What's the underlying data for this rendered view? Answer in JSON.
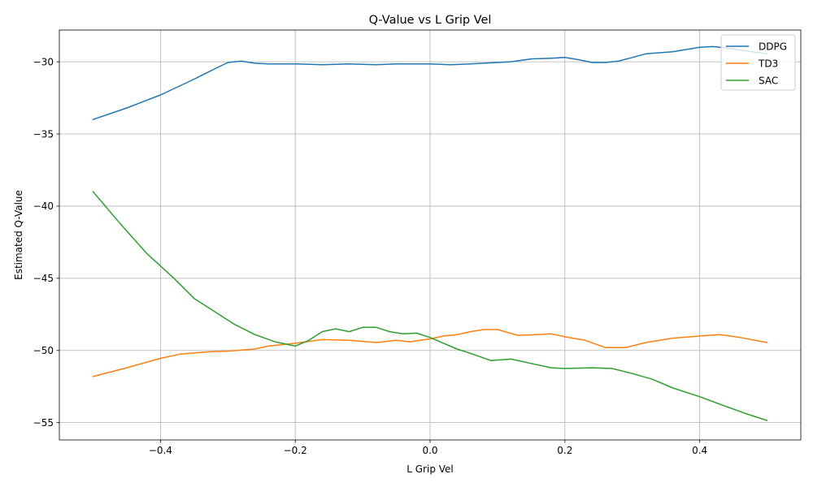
{
  "chart_data": {
    "type": "line",
    "title": "Q-Value vs L Grip Vel",
    "xlabel": "L Grip Vel",
    "ylabel": "Estimated Q-Value",
    "xlim": [
      -0.55,
      0.55
    ],
    "ylim": [
      -56.2,
      -27.8
    ],
    "xticks": [
      -0.4,
      -0.2,
      0.0,
      0.2,
      0.4
    ],
    "xtick_labels": [
      "−0.4",
      "−0.2",
      "0.0",
      "0.2",
      "0.4"
    ],
    "yticks": [
      -55,
      -50,
      -45,
      -40,
      -35,
      -30
    ],
    "ytick_labels": [
      "−55",
      "−50",
      "−45",
      "−40",
      "−35",
      "−30"
    ],
    "grid": true,
    "legend_position": "top-right",
    "series": [
      {
        "name": "DDPG",
        "color": "#1f77b4",
        "points": [
          [
            -0.5,
            -34.0
          ],
          [
            -0.45,
            -33.2
          ],
          [
            -0.4,
            -32.3
          ],
          [
            -0.35,
            -31.2
          ],
          [
            -0.32,
            -30.5
          ],
          [
            -0.3,
            -30.05
          ],
          [
            -0.28,
            -29.95
          ],
          [
            -0.26,
            -30.1
          ],
          [
            -0.24,
            -30.15
          ],
          [
            -0.2,
            -30.15
          ],
          [
            -0.16,
            -30.2
          ],
          [
            -0.12,
            -30.15
          ],
          [
            -0.08,
            -30.2
          ],
          [
            -0.05,
            -30.15
          ],
          [
            -0.02,
            -30.15
          ],
          [
            0.0,
            -30.15
          ],
          [
            0.03,
            -30.2
          ],
          [
            0.06,
            -30.15
          ],
          [
            0.1,
            -30.05
          ],
          [
            0.12,
            -30.0
          ],
          [
            0.15,
            -29.8
          ],
          [
            0.18,
            -29.75
          ],
          [
            0.2,
            -29.7
          ],
          [
            0.22,
            -29.85
          ],
          [
            0.24,
            -30.05
          ],
          [
            0.26,
            -30.05
          ],
          [
            0.28,
            -29.95
          ],
          [
            0.3,
            -29.7
          ],
          [
            0.32,
            -29.45
          ],
          [
            0.36,
            -29.3
          ],
          [
            0.38,
            -29.15
          ],
          [
            0.4,
            -29.0
          ],
          [
            0.42,
            -28.95
          ],
          [
            0.44,
            -29.05
          ],
          [
            0.47,
            -29.25
          ],
          [
            0.5,
            -29.45
          ]
        ]
      },
      {
        "name": "TD3",
        "color": "#ff7f0e",
        "points": [
          [
            -0.5,
            -51.8
          ],
          [
            -0.45,
            -51.2
          ],
          [
            -0.4,
            -50.55
          ],
          [
            -0.37,
            -50.25
          ],
          [
            -0.33,
            -50.1
          ],
          [
            -0.3,
            -50.05
          ],
          [
            -0.26,
            -49.9
          ],
          [
            -0.24,
            -49.7
          ],
          [
            -0.2,
            -49.5
          ],
          [
            -0.16,
            -49.25
          ],
          [
            -0.12,
            -49.3
          ],
          [
            -0.08,
            -49.45
          ],
          [
            -0.05,
            -49.3
          ],
          [
            -0.03,
            -49.4
          ],
          [
            0.0,
            -49.2
          ],
          [
            0.02,
            -49.0
          ],
          [
            0.04,
            -48.9
          ],
          [
            0.06,
            -48.7
          ],
          [
            0.08,
            -48.55
          ],
          [
            0.1,
            -48.55
          ],
          [
            0.13,
            -48.95
          ],
          [
            0.16,
            -48.9
          ],
          [
            0.18,
            -48.85
          ],
          [
            0.2,
            -49.05
          ],
          [
            0.23,
            -49.3
          ],
          [
            0.26,
            -49.8
          ],
          [
            0.29,
            -49.8
          ],
          [
            0.32,
            -49.45
          ],
          [
            0.36,
            -49.15
          ],
          [
            0.4,
            -49.0
          ],
          [
            0.43,
            -48.9
          ],
          [
            0.46,
            -49.1
          ],
          [
            0.5,
            -49.45
          ]
        ]
      },
      {
        "name": "SAC",
        "color": "#2ca02c",
        "points": [
          [
            -0.5,
            -39.0
          ],
          [
            -0.46,
            -41.2
          ],
          [
            -0.42,
            -43.3
          ],
          [
            -0.38,
            -45.0
          ],
          [
            -0.35,
            -46.4
          ],
          [
            -0.32,
            -47.3
          ],
          [
            -0.29,
            -48.2
          ],
          [
            -0.26,
            -48.9
          ],
          [
            -0.23,
            -49.4
          ],
          [
            -0.2,
            -49.7
          ],
          [
            -0.18,
            -49.3
          ],
          [
            -0.16,
            -48.7
          ],
          [
            -0.14,
            -48.5
          ],
          [
            -0.12,
            -48.7
          ],
          [
            -0.1,
            -48.4
          ],
          [
            -0.08,
            -48.4
          ],
          [
            -0.06,
            -48.7
          ],
          [
            -0.04,
            -48.85
          ],
          [
            -0.02,
            -48.8
          ],
          [
            0.0,
            -49.1
          ],
          [
            0.02,
            -49.5
          ],
          [
            0.04,
            -49.9
          ],
          [
            0.06,
            -50.2
          ],
          [
            0.09,
            -50.7
          ],
          [
            0.12,
            -50.6
          ],
          [
            0.15,
            -50.9
          ],
          [
            0.18,
            -51.2
          ],
          [
            0.2,
            -51.25
          ],
          [
            0.24,
            -51.2
          ],
          [
            0.27,
            -51.25
          ],
          [
            0.3,
            -51.6
          ],
          [
            0.33,
            -52.0
          ],
          [
            0.36,
            -52.6
          ],
          [
            0.4,
            -53.2
          ],
          [
            0.44,
            -53.9
          ],
          [
            0.47,
            -54.4
          ],
          [
            0.5,
            -54.85
          ]
        ]
      }
    ]
  }
}
